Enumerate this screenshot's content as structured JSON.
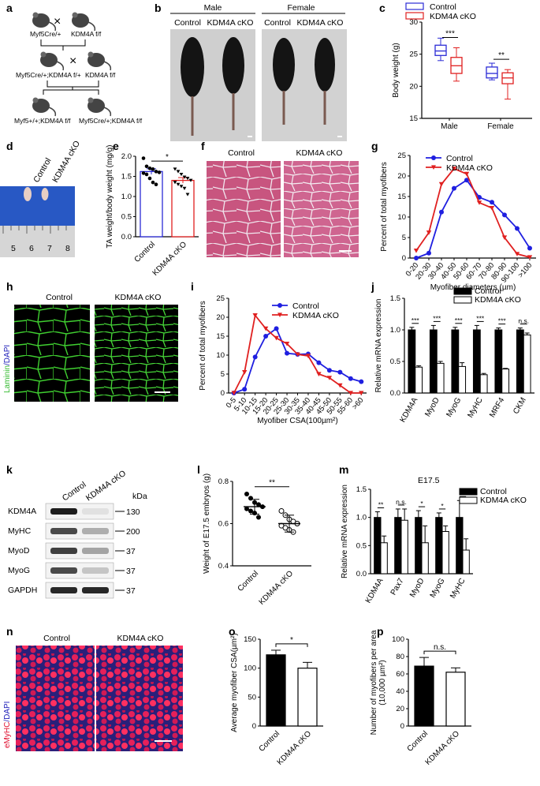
{
  "figure": {
    "panel_letters": {
      "a": "a",
      "b": "b",
      "c": "c",
      "d": "d",
      "e": "e",
      "f": "f",
      "g": "g",
      "h": "h",
      "i": "i",
      "j": "j",
      "k": "k",
      "l": "l",
      "m": "m",
      "n": "n",
      "o": "o",
      "p": "p"
    },
    "groups": {
      "control": "Control",
      "cko": "KDM4A cKO"
    },
    "sexes": {
      "male": "Male",
      "female": "Female"
    },
    "panel_a": {
      "myf5_cre": "Myf5Cre/+",
      "kdm4a_ff": "KDM4A f/f",
      "f1": "Myf5Cre/+;KDM4A f/+",
      "kdm4a_ff2": "KDM4A f/f",
      "off1": "Myf5+/+;KDM4A f/f",
      "off2": "Myf5Cre/+;KDM4A f/f",
      "cross": "×"
    },
    "panel_d": {
      "ruler": [
        "5",
        "6",
        "7",
        "8"
      ]
    },
    "panel_f": {
      "control": "Control",
      "cko": "KDM4A cKO"
    },
    "panel_h": {
      "stain_a": "Laminin",
      "stain_b": "/DAPI"
    },
    "panel_k": {
      "unit": "kDa",
      "proteins": [
        "KDM4A",
        "MyHC",
        "MyoD",
        "MyoG",
        "GAPDH"
      ],
      "markers": [
        "130",
        "200",
        "37",
        "37",
        "37"
      ]
    },
    "panel_m": {
      "subtitle": "E17.5"
    },
    "panel_n": {
      "stain_a": "eMyHC",
      "stain_b": "/DAPI"
    }
  },
  "chart_data": [
    {
      "panel": "c",
      "type": "box",
      "ylabel": "Body weight (g)",
      "ylim": [
        15,
        30
      ],
      "yticks": [
        "15",
        "20",
        "25",
        "30"
      ],
      "categories": [
        "Male",
        "Female"
      ],
      "series": [
        {
          "name": "Control",
          "color": "#2b2bd6",
          "boxes": [
            {
              "min": 24,
              "q1": 24.8,
              "med": 25.5,
              "q3": 26.4,
              "max": 27.5
            },
            {
              "min": 21,
              "q1": 21.3,
              "med": 22.0,
              "q3": 23.0,
              "max": 23.6
            }
          ]
        },
        {
          "name": "KDM4A cKO",
          "color": "#e02020",
          "boxes": [
            {
              "min": 20.8,
              "q1": 22.0,
              "med": 23.2,
              "q3": 24.5,
              "max": 26.0
            },
            {
              "min": 18.0,
              "q1": 20.4,
              "med": 21.3,
              "q3": 22.1,
              "max": 22.6
            }
          ]
        }
      ],
      "annotations": [
        "***",
        "**"
      ]
    },
    {
      "panel": "e",
      "type": "bar",
      "ylabel": "TA weight/body weight (mg/g)",
      "ylim": [
        0,
        2.0
      ],
      "yticks": [
        "0.0",
        "0.5",
        "1.0",
        "1.5",
        "2.0"
      ],
      "categories": [
        "Control",
        "KDM4A cKO"
      ],
      "values": [
        1.62,
        1.4
      ],
      "errors": [
        0.07,
        0.07
      ],
      "points": [
        [
          1.95,
          1.75,
          1.7,
          1.68,
          1.62,
          1.6,
          1.58,
          1.55,
          1.45,
          1.35,
          1.3
        ],
        [
          1.68,
          1.62,
          1.55,
          1.48,
          1.45,
          1.4,
          1.35,
          1.3,
          1.25,
          1.2,
          1.05
        ]
      ],
      "colors": [
        "#2b2bd6",
        "#e02020"
      ],
      "annotations": [
        "*"
      ]
    },
    {
      "panel": "g",
      "type": "line",
      "ylabel": "Percent of total myofibers",
      "xlabel": "Myofiber diameters (µm)",
      "ylim": [
        0,
        25
      ],
      "yticks": [
        "0",
        "5",
        "10",
        "15",
        "20",
        "25"
      ],
      "categories": [
        "0-20",
        "20-30",
        "30-40",
        "40-50",
        "50-60",
        "60-70",
        "70-80",
        "80-90",
        "90-100",
        ">100"
      ],
      "series": [
        {
          "name": "Control",
          "color": "#1f1fe0",
          "marker": "circle",
          "values": [
            0.0,
            1.2,
            11.2,
            17.0,
            19.0,
            14.8,
            13.6,
            10.5,
            7.2,
            2.4
          ]
        },
        {
          "name": "KDM4A cKO",
          "color": "#e02020",
          "marker": "triangle",
          "values": [
            1.8,
            6.2,
            18.0,
            21.8,
            20.5,
            13.5,
            12.2,
            5.0,
            1.0,
            0.2
          ]
        }
      ]
    },
    {
      "panel": "i",
      "type": "line",
      "ylabel": "Percent of total myofibers",
      "xlabel": "Myofiber CSA(100µm²)",
      "ylim": [
        0,
        25
      ],
      "yticks": [
        "0",
        "5",
        "10",
        "15",
        "20",
        "25"
      ],
      "categories": [
        "0-5",
        "5-10",
        "10-15",
        "15-20",
        "20-25",
        "25-30",
        "30-35",
        "35-40",
        "40-45",
        "45-50",
        "50-55",
        "55-60",
        ">60"
      ],
      "series": [
        {
          "name": "Control",
          "color": "#1f1fe0",
          "marker": "circle",
          "values": [
            0.0,
            1.0,
            9.5,
            15.0,
            17.0,
            10.5,
            10.2,
            10.3,
            8.0,
            6.0,
            5.5,
            3.8,
            3.0
          ]
        },
        {
          "name": "KDM4A cKO",
          "color": "#e02020",
          "marker": "triangle",
          "values": [
            0.0,
            5.5,
            20.5,
            17.0,
            14.5,
            13.0,
            10.2,
            9.8,
            5.0,
            4.0,
            2.0,
            0.0,
            0.0
          ]
        }
      ]
    },
    {
      "panel": "j",
      "type": "bar",
      "ylabel": "Relative mRNA expression",
      "ylim": [
        0,
        1.5
      ],
      "yticks": [
        "0.0",
        "0.5",
        "1.0",
        "1.5"
      ],
      "categories": [
        "KDM4A",
        "MyoD",
        "MyoG",
        "MyHC",
        "MRF4",
        "CKM"
      ],
      "series": [
        {
          "name": "Control",
          "color": "#000000",
          "values": [
            1.0,
            1.0,
            1.0,
            1.0,
            1.0,
            1.0
          ],
          "errors": [
            0.04,
            0.07,
            0.04,
            0.07,
            0.03,
            0.03
          ]
        },
        {
          "name": "KDM4A cKO",
          "color": "#ffffff",
          "values": [
            0.41,
            0.47,
            0.42,
            0.29,
            0.38,
            0.92
          ],
          "errors": [
            0.02,
            0.03,
            0.06,
            0.02,
            0.01,
            0.03
          ]
        }
      ],
      "annotations": [
        "***",
        "***",
        "***",
        "***",
        "***",
        "n.s."
      ]
    },
    {
      "panel": "l",
      "type": "scatter",
      "ylabel": "Weight of E17.5 embryos (g)",
      "ylim": [
        0.4,
        0.8
      ],
      "yticks": [
        "0.4",
        "0.6",
        "0.8"
      ],
      "categories": [
        "Control",
        "KDM4A cKO"
      ],
      "means": [
        0.68,
        0.6
      ],
      "sd": [
        0.035,
        0.04
      ],
      "points": [
        [
          0.74,
          0.72,
          0.7,
          0.69,
          0.68,
          0.67,
          0.66,
          0.65,
          0.63
        ],
        [
          0.66,
          0.64,
          0.62,
          0.61,
          0.6,
          0.59,
          0.58,
          0.57,
          0.56
        ]
      ],
      "annotations": [
        "**"
      ]
    },
    {
      "panel": "m",
      "type": "bar",
      "ylabel": "Relative mRNA expression",
      "ylim": [
        0,
        1.5
      ],
      "yticks": [
        "0.0",
        "0.5",
        "1.0",
        "1.5"
      ],
      "categories": [
        "KDM4A",
        "Pax7",
        "MyoD",
        "MyoG",
        "MyHC"
      ],
      "series": [
        {
          "name": "Control",
          "color": "#000000",
          "values": [
            1.0,
            1.0,
            1.0,
            1.0,
            1.0
          ],
          "errors": [
            0.1,
            0.15,
            0.12,
            0.08,
            0.3
          ]
        },
        {
          "name": "KDM4A cKO",
          "color": "#ffffff",
          "values": [
            0.55,
            0.95,
            0.55,
            0.75,
            0.42
          ],
          "errors": [
            0.12,
            0.2,
            0.3,
            0.1,
            0.2
          ]
        }
      ],
      "annotations": [
        "**",
        "n.s.",
        "*",
        "*",
        "*"
      ]
    },
    {
      "panel": "o",
      "type": "bar",
      "ylabel": "Average myofiber CSA(µm²)",
      "ylim": [
        0,
        150
      ],
      "yticks": [
        "0",
        "50",
        "100",
        "150"
      ],
      "categories": [
        "Control",
        "KDM4A cKO"
      ],
      "values": [
        123,
        100
      ],
      "errors": [
        8,
        10
      ],
      "colors": [
        "#000000",
        "#ffffff"
      ],
      "annotations": [
        "*"
      ]
    },
    {
      "panel": "p",
      "type": "bar",
      "ylabel": "Number of myofibers per area (10,000 µm²)",
      "ylim": [
        0,
        100
      ],
      "yticks": [
        "0",
        "20",
        "40",
        "60",
        "80",
        "100"
      ],
      "categories": [
        "Control",
        "KDM4A cKO"
      ],
      "values": [
        69,
        62
      ],
      "errors": [
        10,
        5
      ],
      "colors": [
        "#000000",
        "#ffffff"
      ],
      "annotations": [
        "n.s."
      ]
    }
  ]
}
